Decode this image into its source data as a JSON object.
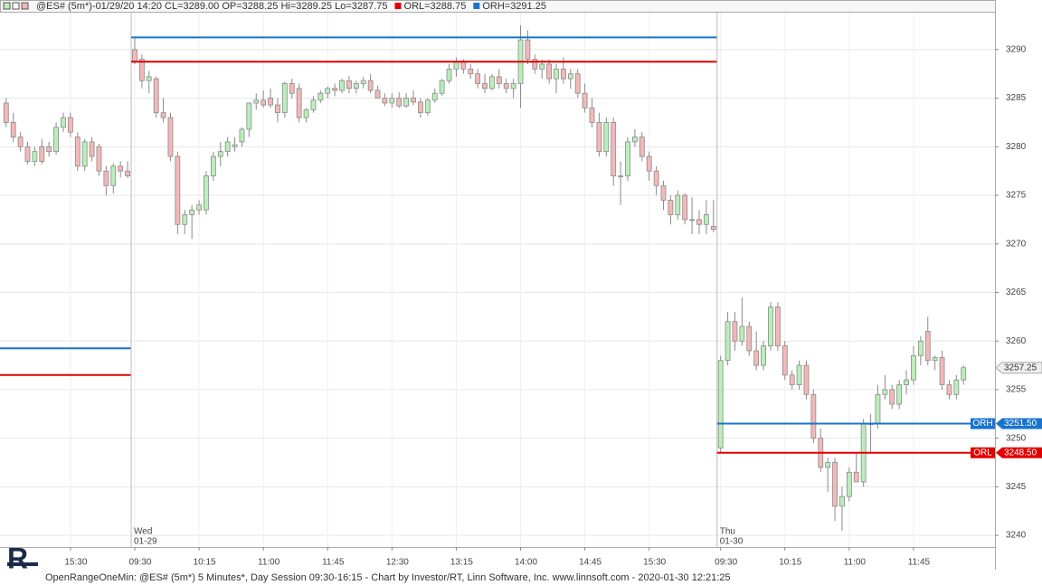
{
  "header": {
    "text": "@ES# (5m*)-01/29/20 14:20 CL=3289.00 OP=3288.25 Hi=3289.25 Lo=3287.75",
    "legend": [
      {
        "text": "ORL=3288.75",
        "color": "#e00000"
      },
      {
        "text": "ORH=3291.25",
        "color": "#1874cd"
      }
    ]
  },
  "chart_data": {
    "type": "candlestick",
    "up_color": "#b9efb9",
    "down_color": "#f4b8b8",
    "wick_color": "#8a8a8a",
    "grid": true,
    "ylim": [
      3238.8,
      3293.8
    ],
    "yticks": [
      3240,
      3245,
      3250,
      3255,
      3260,
      3265,
      3270,
      3275,
      3280,
      3285,
      3290
    ],
    "xlim": [
      -0.86,
      138.4
    ],
    "xticks": [
      {
        "value": 9,
        "label": "15:30"
      },
      {
        "value": 18,
        "label": "09:30"
      },
      {
        "value": 27,
        "label": "10:15"
      },
      {
        "value": 36,
        "label": "11:00"
      },
      {
        "value": 45,
        "label": "11:45"
      },
      {
        "value": 54,
        "label": "12:30"
      },
      {
        "value": 63,
        "label": "13:15"
      },
      {
        "value": 72,
        "label": "14:00"
      },
      {
        "value": 81,
        "label": "14:45"
      },
      {
        "value": 90,
        "label": "15:30"
      },
      {
        "value": 100,
        "label": "09:30"
      },
      {
        "value": 109,
        "label": "10:15"
      },
      {
        "value": 118,
        "label": "11:00"
      },
      {
        "value": 127,
        "label": "11:45"
      }
    ],
    "sessions": [
      {
        "open": [
          3284.5,
          3282.5,
          3281,
          3280,
          3278.5,
          3280,
          3280,
          3279.5,
          3282,
          3283,
          3281,
          3278,
          3280.5,
          3280,
          3277.5,
          3276,
          3278,
          3277.5
        ],
        "high": [
          3285,
          3283.5,
          3281.5,
          3280.5,
          3280,
          3280.8,
          3280.5,
          3282.5,
          3283.5,
          3283.5,
          3281.5,
          3280.8,
          3281,
          3280.3,
          3278,
          3278.3,
          3278.5,
          3278.5
        ],
        "low": [
          3282,
          3280.5,
          3279.5,
          3278.2,
          3278,
          3278.2,
          3279,
          3279.2,
          3281.5,
          3281,
          3277.5,
          3277.5,
          3278.5,
          3277,
          3275,
          3275.2,
          3276.8,
          3276.8
        ],
        "close": [
          3282.5,
          3281,
          3280,
          3278.5,
          3279.5,
          3278.5,
          3279.5,
          3282,
          3283,
          3281.5,
          3278,
          3280.5,
          3279,
          3277.5,
          3276,
          3278,
          3277.5,
          3277
        ],
        "levels": [
          {
            "value": 3259.25,
            "color": "#1874cd"
          },
          {
            "value": 3256.5,
            "color": "#e00000"
          }
        ]
      },
      {
        "day": "Wed",
        "date": "01-29",
        "open": [
          3290,
          3289,
          3286.8,
          3287,
          3283.5,
          3283,
          3279,
          3272,
          3273,
          3273.5,
          3273.5,
          3277,
          3279,
          3279.5,
          3280,
          3280.5,
          3281.8,
          3284.5,
          3284.8,
          3285,
          3284.3,
          3283.5,
          3286.5,
          3286,
          3283,
          3283.8,
          3284.8,
          3285.5,
          3286,
          3285.8,
          3286.8,
          3286,
          3286.5,
          3286.8,
          3285.8,
          3285,
          3284.5,
          3285,
          3284.2,
          3285,
          3284.6,
          3283.5,
          3284.8,
          3285.5,
          3286.8,
          3288,
          3288.8,
          3288,
          3287.5,
          3286.5,
          3286,
          3287.2,
          3286.5,
          3286,
          3286.5,
          3291,
          3289,
          3288,
          3288.5,
          3287,
          3288,
          3287,
          3287.5,
          3285.5,
          3284,
          3282.5,
          3279.5,
          3282.5,
          3277,
          3277,
          3280.5,
          3281,
          3279,
          3277.5,
          3276,
          3274.5,
          3273,
          3275,
          3272.5,
          3272.5,
          3272,
          3271.8
        ],
        "high": [
          3291.2,
          3289.5,
          3287.8,
          3287.2,
          3285,
          3283.5,
          3279.5,
          3273.5,
          3274,
          3274.5,
          3277.5,
          3279.5,
          3280.5,
          3281,
          3281,
          3282,
          3284.5,
          3285.5,
          3285.8,
          3286,
          3285,
          3286.7,
          3287,
          3286.5,
          3284,
          3285.2,
          3285.8,
          3286.2,
          3286.5,
          3287,
          3287.3,
          3286.8,
          3287.2,
          3287.5,
          3286.3,
          3285.5,
          3285.5,
          3285.6,
          3285.5,
          3285.8,
          3285,
          3285,
          3286,
          3287,
          3288.5,
          3289.2,
          3289,
          3288.5,
          3288,
          3287.5,
          3287.5,
          3288,
          3287,
          3287,
          3292.5,
          3292,
          3289.5,
          3289,
          3289,
          3288.5,
          3289.2,
          3288,
          3288,
          3286.5,
          3285,
          3283.5,
          3283,
          3283,
          3278.5,
          3281,
          3281.8,
          3281.5,
          3279.5,
          3278,
          3276.5,
          3275,
          3275.5,
          3275.2,
          3274.8,
          3273.5,
          3274.5,
          3274.5
        ],
        "low": [
          3288.5,
          3286,
          3285.5,
          3283,
          3282.5,
          3278.5,
          3271,
          3271,
          3270.5,
          3273,
          3273,
          3276.5,
          3278,
          3279,
          3279.5,
          3280,
          3281,
          3283.8,
          3284,
          3284,
          3282.5,
          3283,
          3285,
          3282.5,
          3282.5,
          3283.5,
          3284.5,
          3285,
          3285.2,
          3285.5,
          3285.5,
          3285.5,
          3286,
          3285.5,
          3285,
          3284.2,
          3284,
          3284,
          3284,
          3284.3,
          3283,
          3283.2,
          3284.5,
          3285.2,
          3286.5,
          3287.2,
          3287.5,
          3287,
          3286,
          3285.5,
          3285.8,
          3286,
          3285.5,
          3285,
          3284,
          3288.5,
          3287.5,
          3287,
          3286.5,
          3285.5,
          3286.5,
          3286,
          3285,
          3283.5,
          3282,
          3279,
          3279,
          3276,
          3274,
          3276.5,
          3280,
          3278.5,
          3276.5,
          3275,
          3273.5,
          3272,
          3272.5,
          3272,
          3271,
          3271,
          3271,
          3271.2
        ],
        "close": [
          3288.8,
          3286.8,
          3287.2,
          3283.5,
          3283,
          3279,
          3272,
          3273,
          3273.5,
          3274,
          3277,
          3279,
          3279.5,
          3280.5,
          3280.2,
          3281.8,
          3284.5,
          3284.8,
          3284.3,
          3284.3,
          3283.5,
          3286.5,
          3285.5,
          3283,
          3283.8,
          3284.8,
          3285.5,
          3286,
          3285.8,
          3286.8,
          3286,
          3286.5,
          3286.8,
          3285.8,
          3285,
          3284.5,
          3285,
          3284.2,
          3285,
          3284.6,
          3283.5,
          3284.8,
          3285.5,
          3286.8,
          3288,
          3288.8,
          3288,
          3287.5,
          3286.5,
          3286,
          3287.2,
          3286.5,
          3286,
          3286.5,
          3291,
          3289,
          3288,
          3288.5,
          3287,
          3288,
          3287,
          3287.5,
          3285.5,
          3284,
          3282.5,
          3279.5,
          3282.5,
          3277,
          3277,
          3280.5,
          3281,
          3279,
          3277.5,
          3276,
          3274.5,
          3273,
          3275,
          3272.5,
          3272.5,
          3272,
          3273,
          3271.5
        ],
        "levels": [
          {
            "value": 3291.25,
            "color": "#1874cd"
          },
          {
            "value": 3288.75,
            "color": "#e00000"
          }
        ]
      },
      {
        "day": "Thu",
        "date": "01-30",
        "open": [
          3249,
          3258,
          3262,
          3260,
          3261.5,
          3259,
          3257.5,
          3259.5,
          3263.5,
          3259.5,
          3256.5,
          3255.5,
          3257.5,
          3254.5,
          3250,
          3247,
          3247.5,
          3243,
          3244,
          3246.5,
          3245.5,
          3251.5,
          3251.5,
          3254.5,
          3255,
          3253.5,
          3255.5,
          3256,
          3258.5,
          3261,
          3258,
          3258.3,
          3255.5,
          3254.5,
          3256
        ],
        "high": [
          3258.5,
          3263,
          3263,
          3264.5,
          3262,
          3261,
          3260,
          3264,
          3264,
          3260,
          3257,
          3258,
          3258,
          3255,
          3251,
          3248,
          3248,
          3245,
          3247,
          3248.5,
          3252,
          3252.5,
          3255.5,
          3256.5,
          3255.5,
          3256,
          3257,
          3259.5,
          3260.5,
          3262.5,
          3258.5,
          3259,
          3256,
          3256.5,
          3257.5
        ],
        "low": [
          3248.5,
          3257.5,
          3259,
          3259.5,
          3258.5,
          3257,
          3257,
          3259,
          3259,
          3256,
          3255,
          3255,
          3254,
          3249.5,
          3246.5,
          3244.5,
          3241.5,
          3240.5,
          3243.5,
          3245.5,
          3245,
          3248.5,
          3251,
          3254,
          3253,
          3253,
          3254.5,
          3255.5,
          3257.5,
          3257.5,
          3257,
          3255,
          3254,
          3254,
          3255.5
        ],
        "close": [
          3258,
          3262,
          3260,
          3261.5,
          3259,
          3257.5,
          3259.5,
          3263.5,
          3259.5,
          3256.5,
          3255.5,
          3257.5,
          3254.5,
          3250,
          3247,
          3247.5,
          3243,
          3244,
          3246.5,
          3245.5,
          3251.5,
          3251.5,
          3254.5,
          3255,
          3253.5,
          3255.5,
          3256,
          3258.5,
          3260,
          3258,
          3258.3,
          3255.5,
          3254.5,
          3256,
          3257.25
        ],
        "levels": [
          {
            "label": "ORH",
            "value": 3251.5,
            "value_label": "3251.50",
            "color": "#1874cd"
          },
          {
            "label": "ORL",
            "value": 3248.5,
            "value_label": "3248.50",
            "color": "#e00000"
          }
        ]
      }
    ],
    "last": {
      "value": 3257.25,
      "label": "3257.25"
    }
  },
  "footer": "OpenRangeOneMin: @ES# (5m*) 5 Minutes*, Day Session 09:30-16:15 - Chart by Investor/RT, Linn Software, Inc. www.linnsoft.com - 2020-01-30 12:21:25",
  "logo": "R"
}
